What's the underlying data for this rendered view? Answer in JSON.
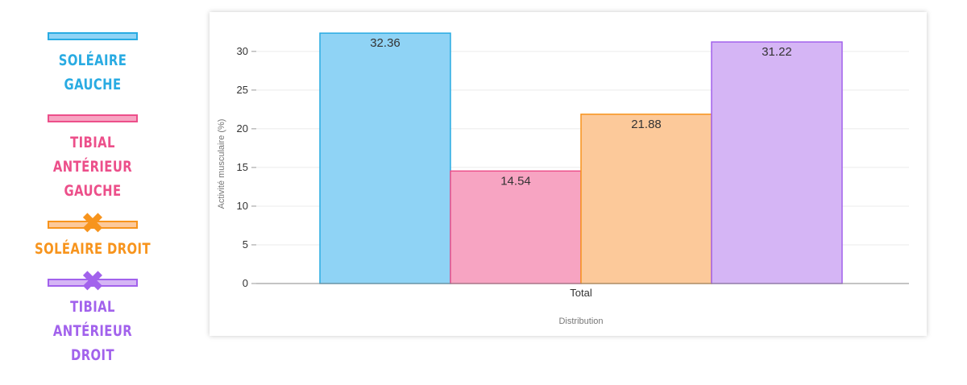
{
  "legend": [
    {
      "label": "SOLÉAIRE GAUCHE",
      "fill": "#8fd3f5",
      "stroke": "#29abe2",
      "crossed": false
    },
    {
      "label": "TIBIAL ANTÉRIEUR GAUCHE",
      "fill": "#f7a4c2",
      "stroke": "#ec4f8a",
      "crossed": false
    },
    {
      "label": "SOLÉAIRE DROIT",
      "fill": "#fcc99a",
      "stroke": "#f7941d",
      "crossed": true
    },
    {
      "label": "TIBIAL ANTÉRIEUR DROIT",
      "fill": "#d5b5f5",
      "stroke": "#a262ec",
      "crossed": true
    }
  ],
  "chart_data": {
    "type": "bar",
    "categories": [
      "Total"
    ],
    "series": [
      {
        "name": "SOLÉAIRE GAUCHE",
        "values": [
          32.36
        ],
        "fill": "#8fd3f5",
        "stroke": "#29abe2"
      },
      {
        "name": "TIBIAL ANTÉRIEUR GAUCHE",
        "values": [
          14.54
        ],
        "fill": "#f7a4c2",
        "stroke": "#ec4f8a"
      },
      {
        "name": "SOLÉAIRE DROIT",
        "values": [
          21.88
        ],
        "fill": "#fcc99a",
        "stroke": "#f7941d"
      },
      {
        "name": "TIBIAL ANTÉRIEUR DROIT",
        "values": [
          31.22
        ],
        "fill": "#d5b5f5",
        "stroke": "#a262ec"
      }
    ],
    "value_labels": [
      "32.36",
      "14.54",
      "21.88",
      "31.22"
    ],
    "xlabel": "Distribution",
    "ylabel": "Activité musculaire (%)",
    "yticks": [
      0,
      5,
      10,
      15,
      20,
      25,
      30
    ],
    "ylim": [
      0,
      33
    ],
    "grid": true,
    "legend_position": "left"
  }
}
